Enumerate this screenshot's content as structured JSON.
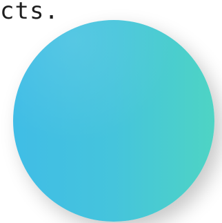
{
  "page": {
    "text_fragment": "cts."
  },
  "orb": {
    "icon": "gradient-circle",
    "gradient_start": "#40bde6",
    "gradient_mid": "#45c4dc",
    "gradient_end": "#4ed4c4"
  }
}
